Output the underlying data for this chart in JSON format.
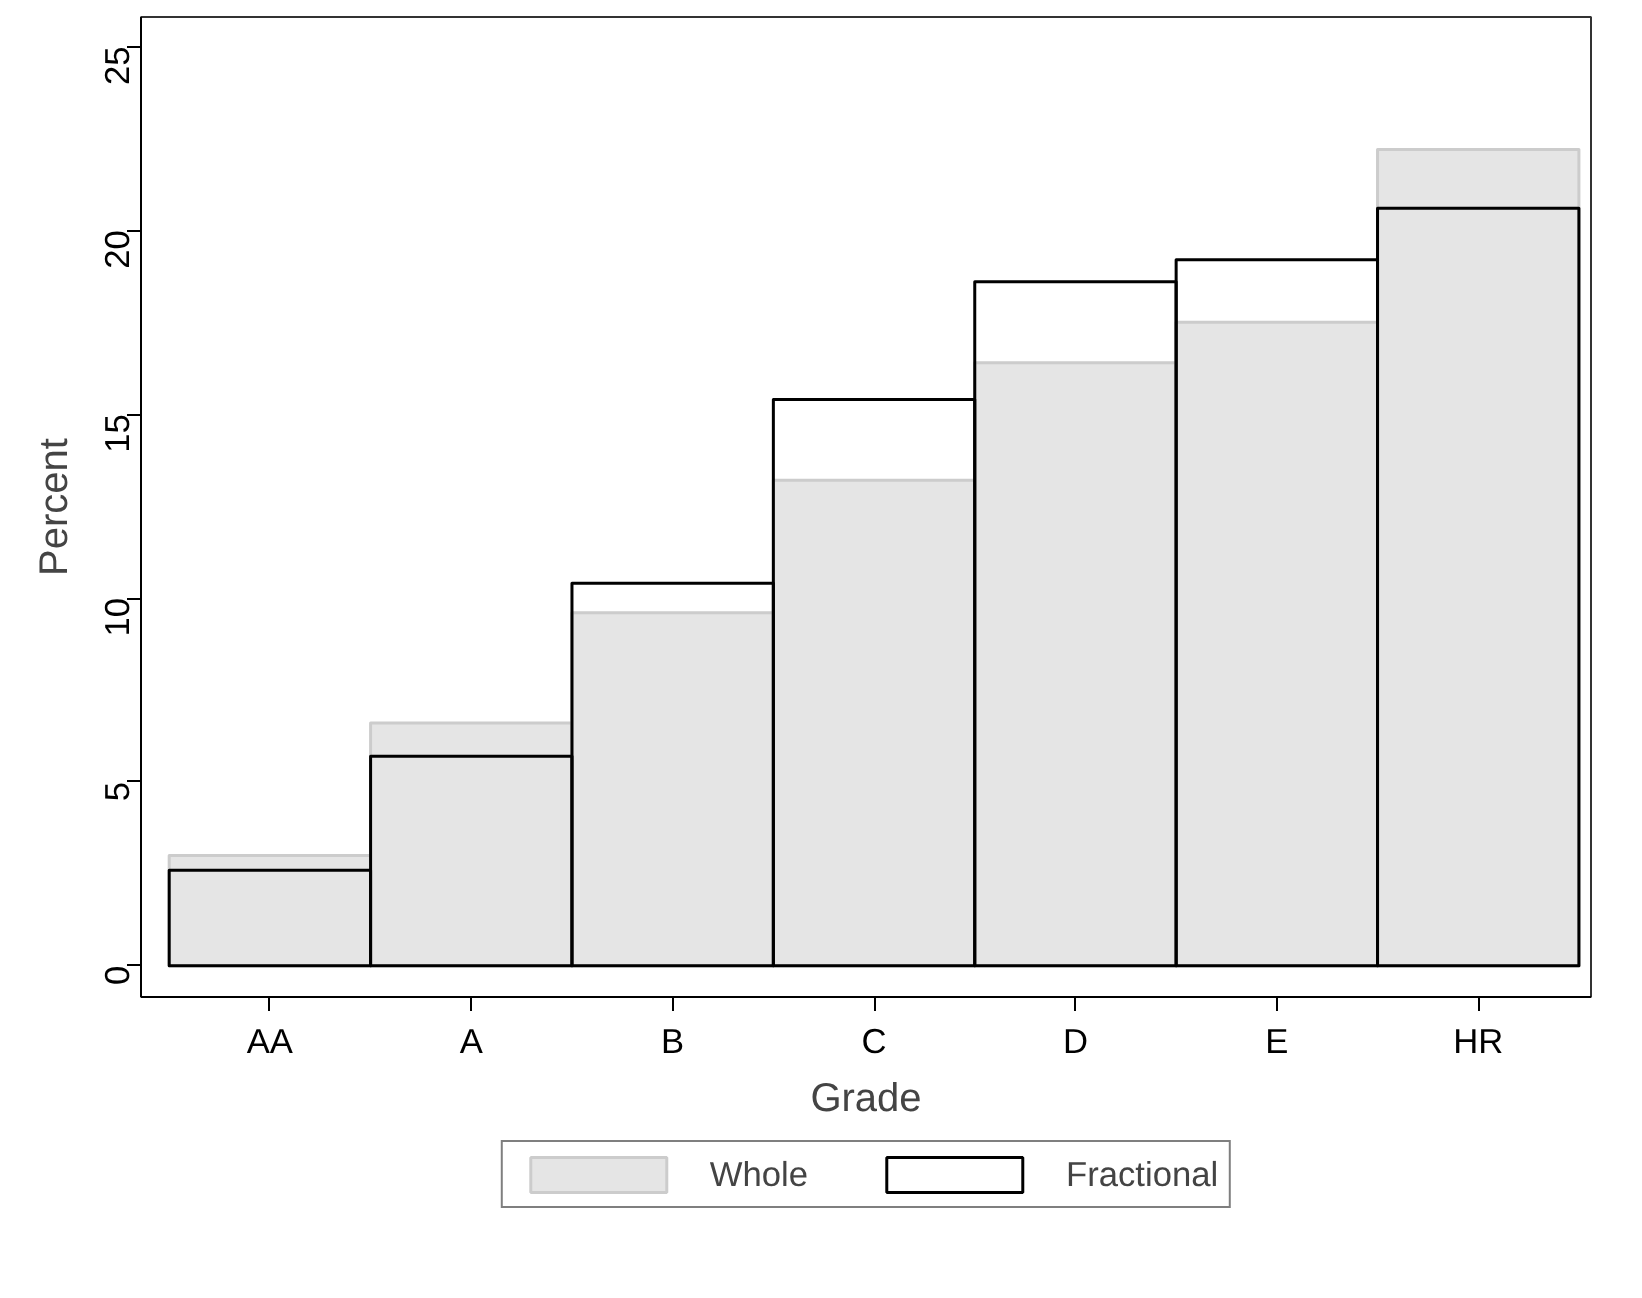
{
  "chart_data": {
    "type": "bar",
    "xlabel": "Grade",
    "ylabel": "Percent",
    "categories": [
      "AA",
      "A",
      "B",
      "C",
      "D",
      "E",
      "HR"
    ],
    "series": [
      {
        "name": "Whole",
        "color": "#e5e5e5",
        "values": [
          3.0,
          6.6,
          9.6,
          13.2,
          16.4,
          17.5,
          22.2
        ]
      },
      {
        "name": "Fractional",
        "color": "#000000",
        "values": [
          2.6,
          5.7,
          10.4,
          15.4,
          18.6,
          19.2,
          20.6
        ]
      }
    ],
    "ylim": [
      -0.85,
      25.8
    ],
    "yticks": [
      0,
      5,
      10,
      15,
      20,
      25
    ],
    "grid": false,
    "legend": "bottom"
  }
}
